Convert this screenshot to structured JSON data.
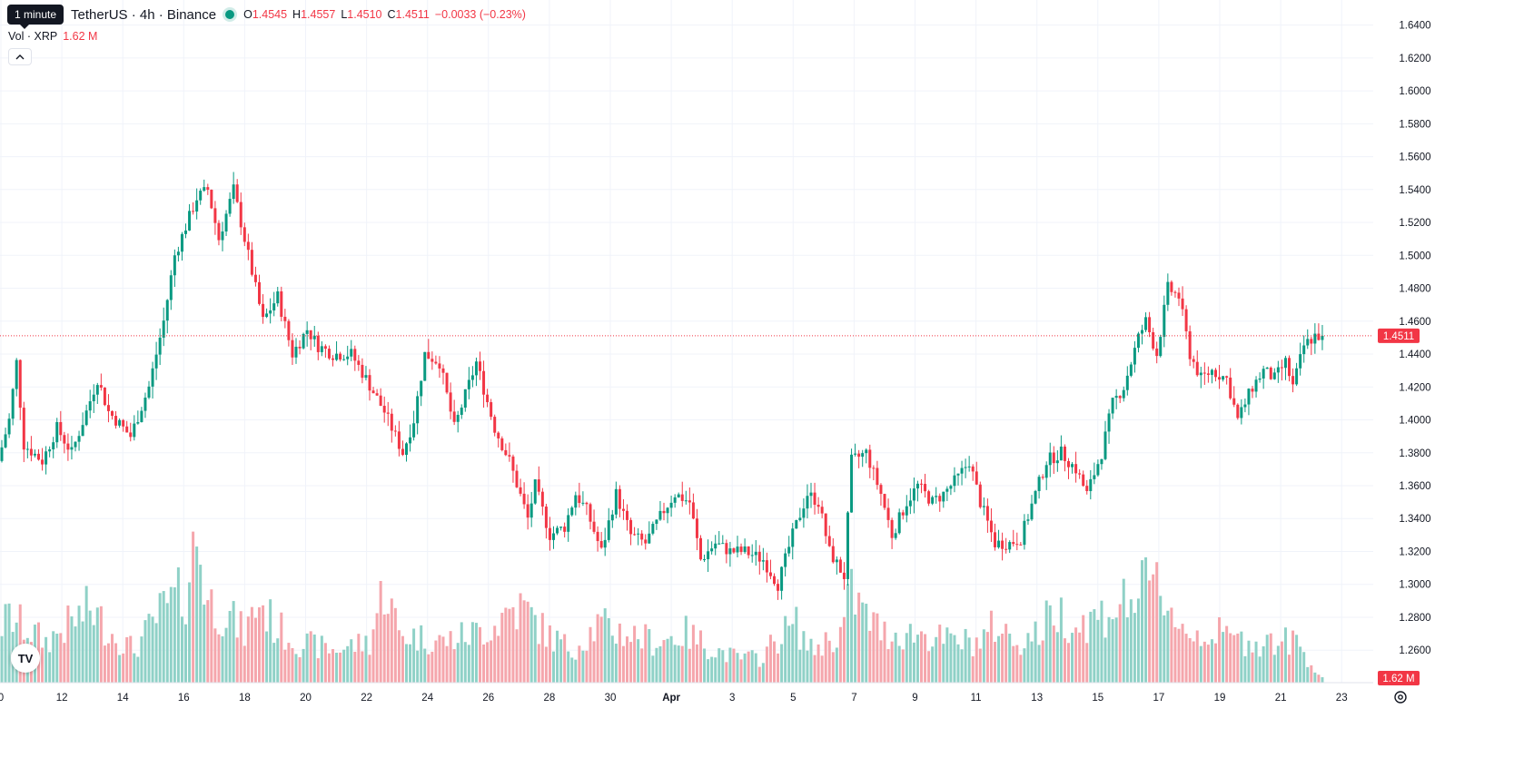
{
  "header": {
    "tooltip": "1 minute",
    "symbol": "TetherUS · 4h · Binance",
    "o_label": "O",
    "o_value": "1.4545",
    "h_label": "H",
    "h_value": "1.4557",
    "l_label": "L",
    "l_value": "1.4510",
    "c_label": "C",
    "c_value": "1.4511",
    "change": "−0.0033 (−0.23%)"
  },
  "volume_legend": {
    "label": "Vol · XRP",
    "value": "1.62 M"
  },
  "logo_text": "TV",
  "colors": {
    "up": "#089981",
    "down": "#f23645",
    "vol_up": "#8fd1c7",
    "vol_down": "#f5a6ac",
    "grid": "#f0f3fa",
    "axis_text": "#131722"
  },
  "chart_data": {
    "type": "candlestick",
    "price_axis": {
      "ticks": [
        "1.6400",
        "1.6200",
        "1.6000",
        "1.5800",
        "1.5600",
        "1.5400",
        "1.5200",
        "1.5000",
        "1.4800",
        "1.4600",
        "1.4400",
        "1.4200",
        "1.4000",
        "1.3800",
        "1.3600",
        "1.3400",
        "1.3200",
        "1.3000",
        "1.2800",
        "1.2600"
      ],
      "range": [
        1.2535,
        1.6475
      ]
    },
    "time_axis": {
      "labels": [
        "0",
        "12",
        "14",
        "16",
        "18",
        "20",
        "22",
        "24",
        "26",
        "28",
        "30",
        "Apr",
        "3",
        "5",
        "7",
        "9",
        "11",
        "13",
        "15",
        "17",
        "19",
        "21",
        "23"
      ]
    },
    "last_price": "1.4511",
    "last_volume": "1.62 M",
    "grid": true,
    "anchors": [
      [
        0,
        1.375
      ],
      [
        3,
        1.4
      ],
      [
        5,
        1.435
      ],
      [
        7,
        1.385
      ],
      [
        12,
        1.375
      ],
      [
        16,
        1.395
      ],
      [
        20,
        1.38
      ],
      [
        24,
        1.405
      ],
      [
        27,
        1.425
      ],
      [
        30,
        1.405
      ],
      [
        36,
        1.39
      ],
      [
        41,
        1.42
      ],
      [
        45,
        1.46
      ],
      [
        48,
        1.5
      ],
      [
        54,
        1.535
      ],
      [
        57,
        1.54
      ],
      [
        60,
        1.51
      ],
      [
        64,
        1.54
      ],
      [
        69,
        1.49
      ],
      [
        72,
        1.46
      ],
      [
        76,
        1.475
      ],
      [
        80,
        1.44
      ],
      [
        84,
        1.455
      ],
      [
        87,
        1.445
      ],
      [
        91,
        1.44
      ],
      [
        96,
        1.44
      ],
      [
        100,
        1.425
      ],
      [
        105,
        1.405
      ],
      [
        110,
        1.38
      ],
      [
        113,
        1.4
      ],
      [
        116,
        1.44
      ],
      [
        120,
        1.435
      ],
      [
        124,
        1.395
      ],
      [
        127,
        1.415
      ],
      [
        130,
        1.435
      ],
      [
        135,
        1.395
      ],
      [
        139,
        1.375
      ],
      [
        144,
        1.34
      ],
      [
        146,
        1.36
      ],
      [
        150,
        1.33
      ],
      [
        154,
        1.335
      ],
      [
        157,
        1.355
      ],
      [
        160,
        1.345
      ],
      [
        164,
        1.32
      ],
      [
        168,
        1.355
      ],
      [
        172,
        1.33
      ],
      [
        176,
        1.325
      ],
      [
        181,
        1.345
      ],
      [
        184,
        1.355
      ],
      [
        188,
        1.35
      ],
      [
        191,
        1.315
      ],
      [
        195,
        1.325
      ],
      [
        199,
        1.32
      ],
      [
        203,
        1.32
      ],
      [
        208,
        1.315
      ],
      [
        212,
        1.3
      ],
      [
        216,
        1.33
      ],
      [
        220,
        1.355
      ],
      [
        223,
        1.35
      ],
      [
        226,
        1.32
      ],
      [
        230,
        1.305
      ],
      [
        232,
        1.375
      ],
      [
        236,
        1.38
      ],
      [
        240,
        1.355
      ],
      [
        243,
        1.33
      ],
      [
        247,
        1.35
      ],
      [
        250,
        1.36
      ],
      [
        254,
        1.35
      ],
      [
        257,
        1.355
      ],
      [
        261,
        1.365
      ],
      [
        264,
        1.375
      ],
      [
        267,
        1.35
      ],
      [
        271,
        1.325
      ],
      [
        275,
        1.325
      ],
      [
        278,
        1.328
      ],
      [
        282,
        1.355
      ],
      [
        285,
        1.375
      ],
      [
        289,
        1.38
      ],
      [
        293,
        1.37
      ],
      [
        296,
        1.355
      ],
      [
        300,
        1.38
      ],
      [
        303,
        1.41
      ],
      [
        306,
        1.42
      ],
      [
        310,
        1.45
      ],
      [
        312,
        1.46
      ],
      [
        315,
        1.44
      ],
      [
        318,
        1.48
      ],
      [
        321,
        1.475
      ],
      [
        324,
        1.44
      ],
      [
        327,
        1.425
      ],
      [
        330,
        1.43
      ],
      [
        334,
        1.425
      ],
      [
        337,
        1.4
      ],
      [
        341,
        1.42
      ],
      [
        344,
        1.43
      ],
      [
        347,
        1.425
      ],
      [
        350,
        1.435
      ],
      [
        352,
        1.42
      ],
      [
        355,
        1.445
      ],
      [
        358,
        1.4511
      ]
    ],
    "volume_anchors": [
      [
        0,
        0.35
      ],
      [
        2,
        0.4
      ],
      [
        12,
        0.25
      ],
      [
        18,
        0.35
      ],
      [
        24,
        0.45
      ],
      [
        30,
        0.3
      ],
      [
        36,
        0.2
      ],
      [
        44,
        0.45
      ],
      [
        50,
        0.55
      ],
      [
        53,
        0.9
      ],
      [
        56,
        0.5
      ],
      [
        62,
        0.4
      ],
      [
        66,
        0.3
      ],
      [
        70,
        0.5
      ],
      [
        74,
        0.35
      ],
      [
        80,
        0.25
      ],
      [
        90,
        0.2
      ],
      [
        100,
        0.25
      ],
      [
        104,
        0.6
      ],
      [
        108,
        0.3
      ],
      [
        120,
        0.25
      ],
      [
        128,
        0.3
      ],
      [
        134,
        0.35
      ],
      [
        138,
        0.45
      ],
      [
        142,
        0.45
      ],
      [
        148,
        0.3
      ],
      [
        155,
        0.2
      ],
      [
        162,
        0.35
      ],
      [
        170,
        0.3
      ],
      [
        178,
        0.25
      ],
      [
        186,
        0.3
      ],
      [
        194,
        0.2
      ],
      [
        200,
        0.15
      ],
      [
        206,
        0.15
      ],
      [
        212,
        0.3
      ],
      [
        216,
        0.35
      ],
      [
        220,
        0.2
      ],
      [
        228,
        0.3
      ],
      [
        231,
        0.55
      ],
      [
        235,
        0.4
      ],
      [
        240,
        0.3
      ],
      [
        250,
        0.3
      ],
      [
        258,
        0.25
      ],
      [
        266,
        0.25
      ],
      [
        270,
        0.35
      ],
      [
        276,
        0.25
      ],
      [
        282,
        0.3
      ],
      [
        286,
        0.45
      ],
      [
        292,
        0.35
      ],
      [
        298,
        0.4
      ],
      [
        306,
        0.5
      ],
      [
        310,
        0.55
      ],
      [
        314,
        0.6
      ],
      [
        318,
        0.45
      ],
      [
        322,
        0.3
      ],
      [
        330,
        0.3
      ],
      [
        338,
        0.25
      ],
      [
        346,
        0.25
      ],
      [
        352,
        0.25
      ],
      [
        358,
        0.05
      ]
    ]
  }
}
